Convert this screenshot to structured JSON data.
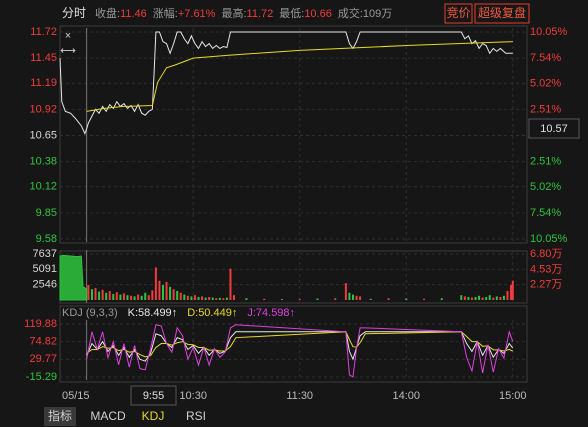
{
  "up_color": "#f03c3c",
  "down_color": "#2ec43c",
  "header": {
    "title": "分时",
    "stats": [
      {
        "label": "收盘:",
        "value": "11.46",
        "color": "#f03c3c"
      },
      {
        "label": "涨幅:",
        "value": "+7.61%",
        "color": "#f03c3c"
      },
      {
        "label": "最高:",
        "value": "11.72",
        "color": "#f03c3c"
      },
      {
        "label": "最低:",
        "value": "10.66",
        "color": "#f03c3c"
      },
      {
        "label": "成交:",
        "value": "109万",
        "color": "#9a9a9a"
      }
    ],
    "buttons": [
      "竞价",
      "超级复盘"
    ]
  },
  "date_label": "05/15",
  "crosshair_time": "9:55",
  "crosshair_price": 10.57,
  "tabs": [
    {
      "text": "指标",
      "style": "selected"
    },
    {
      "text": "MACD",
      "style": "normal"
    },
    {
      "text": "KDJ",
      "style": "active"
    },
    {
      "text": "RSI",
      "style": "normal"
    }
  ],
  "chart_data": [
    {
      "type": "line",
      "xlim": [
        -15,
        248
      ],
      "ylim": [
        9.58,
        11.72
      ],
      "yticks": [
        11.72,
        11.45,
        11.19,
        10.92,
        10.65,
        10.38,
        10.12,
        9.85,
        9.58
      ],
      "ytick_colors": [
        "#f03c3c",
        "#f03c3c",
        "#f03c3c",
        "#f03c3c",
        "#d8d8d8",
        "#2ec43c",
        "#2ec43c",
        "#2ec43c",
        "#2ec43c"
      ],
      "y2lim": [
        -10.05,
        10.05
      ],
      "y2ticks": [
        {
          "value": 10.05,
          "label": "10.05%"
        },
        {
          "value": 7.54,
          "label": "7.54%"
        },
        {
          "value": 5.02,
          "label": "5.02%"
        },
        {
          "value": 2.51,
          "label": "2.51%"
        },
        {
          "value": -2.51,
          "label": "2.51%"
        },
        {
          "value": -5.02,
          "label": "5.02%"
        },
        {
          "value": -7.54,
          "label": "7.54%"
        },
        {
          "value": -10.05,
          "label": "10.05%"
        }
      ],
      "xticks": [
        {
          "value": 60,
          "label": "10:30"
        },
        {
          "value": 120,
          "label": "11:30"
        },
        {
          "value": 180,
          "label": "14:00"
        },
        {
          "value": 240,
          "label": "15:00"
        }
      ],
      "grid": true,
      "x": [
        -15,
        -14,
        -12,
        -9,
        -6,
        -3,
        -1,
        0,
        1,
        3,
        5,
        7,
        9,
        11,
        13,
        15,
        17,
        19,
        21,
        23,
        25,
        27,
        29,
        31,
        33,
        35,
        37,
        38,
        39,
        41,
        43,
        45,
        47,
        49,
        51,
        53,
        55,
        57,
        59,
        61,
        63,
        65,
        67,
        69,
        71,
        73,
        75,
        77,
        79,
        81,
        146,
        148,
        150,
        152,
        154,
        211,
        213,
        215,
        217,
        219,
        221,
        223,
        225,
        227,
        229,
        231,
        233,
        236,
        240
      ],
      "series": [
        {
          "color": "#e8e8e8",
          "values": [
            11.45,
            11.0,
            10.9,
            10.88,
            10.82,
            10.75,
            10.67,
            10.72,
            10.78,
            10.85,
            10.92,
            10.88,
            10.95,
            10.9,
            10.97,
            10.93,
            11.0,
            10.95,
            10.98,
            10.93,
            10.96,
            10.9,
            10.97,
            10.88,
            10.86,
            10.9,
            10.92,
            11.3,
            11.72,
            11.72,
            11.62,
            11.6,
            11.5,
            11.6,
            11.72,
            11.72,
            11.65,
            11.6,
            11.68,
            11.6,
            11.55,
            11.62,
            11.57,
            11.6,
            11.55,
            11.58,
            11.55,
            11.57,
            11.56,
            11.72,
            11.72,
            11.6,
            11.55,
            11.62,
            11.72,
            11.72,
            11.65,
            11.68,
            11.6,
            11.63,
            11.55,
            11.6,
            11.58,
            11.5,
            11.55,
            11.52,
            11.55,
            11.5,
            11.5
          ]
        },
        {
          "color": "#e6dc1e",
          "x": [
            0,
            10,
            20,
            37,
            40,
            45,
            50,
            60,
            80,
            120,
            180,
            240
          ],
          "values": [
            10.9,
            10.93,
            10.95,
            10.96,
            11.2,
            11.35,
            11.38,
            11.45,
            11.48,
            11.53,
            11.58,
            11.62
          ]
        }
      ]
    },
    {
      "type": "bar",
      "xlim": [
        -15,
        248
      ],
      "ylim": [
        0,
        7637
      ],
      "yticks": [
        7637,
        5091,
        2546
      ],
      "y2lim": [
        0,
        6.8
      ],
      "y2ticks": [
        {
          "value": 6.8,
          "label": "6.80万"
        },
        {
          "value": 4.53,
          "label": "4.53万"
        },
        {
          "value": 2.27,
          "label": "2.27万"
        }
      ],
      "x": [
        1,
        3,
        5,
        7,
        9,
        11,
        13,
        15,
        17,
        19,
        21,
        23,
        25,
        27,
        29,
        31,
        33,
        35,
        37,
        39,
        41,
        43,
        45,
        47,
        49,
        51,
        53,
        55,
        57,
        59,
        61,
        63,
        65,
        67,
        69,
        71,
        73,
        75,
        77,
        79,
        81,
        83,
        90,
        100,
        110,
        120,
        130,
        140,
        146,
        148,
        150,
        152,
        154,
        160,
        170,
        180,
        190,
        200,
        211,
        213,
        215,
        217,
        219,
        221,
        223,
        225,
        227,
        229,
        231,
        233,
        235,
        237,
        239,
        240
      ],
      "values": [
        2500,
        1800,
        2000,
        1400,
        1700,
        1200,
        1500,
        1000,
        1300,
        900,
        1100,
        800,
        700,
        600,
        900,
        700,
        1200,
        800,
        1600,
        5400,
        3200,
        2500,
        3000,
        2200,
        1800,
        1500,
        1200,
        900,
        700,
        600,
        800,
        500,
        600,
        400,
        500,
        400,
        300,
        350,
        300,
        400,
        5200,
        800,
        300,
        200,
        150,
        200,
        250,
        300,
        2800,
        1200,
        900,
        700,
        600,
        200,
        300,
        250,
        200,
        300,
        800,
        600,
        500,
        400,
        500,
        700,
        400,
        500,
        800,
        400,
        600,
        500,
        700,
        1500,
        2500,
        3200
      ],
      "directions": [
        "u",
        "d",
        "u",
        "d",
        "u",
        "d",
        "u",
        "d",
        "u",
        "d",
        "u",
        "d",
        "u",
        "d",
        "u",
        "d",
        "d",
        "u",
        "u",
        "u",
        "u",
        "d",
        "u",
        "d",
        "u",
        "d",
        "u",
        "d",
        "u",
        "d",
        "u",
        "d",
        "u",
        "d",
        "u",
        "d",
        "u",
        "d",
        "u",
        "d",
        "u",
        "u",
        "d",
        "u",
        "d",
        "u",
        "d",
        "u",
        "u",
        "d",
        "d",
        "u",
        "u",
        "d",
        "u",
        "d",
        "u",
        "d",
        "d",
        "u",
        "d",
        "u",
        "d",
        "d",
        "u",
        "d",
        "d",
        "u",
        "d",
        "u",
        "d",
        "u",
        "u",
        "u"
      ],
      "area": {
        "color": "#2ec43c",
        "x": [
          -15,
          -13,
          -11,
          -9,
          -7,
          -5,
          -3,
          -2,
          -1,
          0
        ],
        "values": [
          7300,
          7400,
          7350,
          7300,
          7250,
          7200,
          7300,
          2200,
          2000,
          1800
        ]
      }
    },
    {
      "type": "line",
      "title": "KDJ (9,3,3)",
      "xlim": [
        -15,
        248
      ],
      "ylim": [
        -15.29,
        119.88
      ],
      "yticks": [
        119.88,
        74.82,
        29.77,
        -15.29
      ],
      "ytick_colors": [
        "#f03c3c",
        "#f03c3c",
        "#f03c3c",
        "#2ec43c"
      ],
      "x": [
        0,
        3,
        6,
        9,
        12,
        15,
        18,
        21,
        24,
        27,
        30,
        33,
        36,
        39,
        42,
        45,
        48,
        51,
        54,
        57,
        60,
        63,
        66,
        69,
        72,
        75,
        78,
        81,
        84,
        146,
        148,
        150,
        152,
        154,
        157,
        211,
        214,
        217,
        220,
        223,
        226,
        229,
        232,
        235,
        238,
        240
      ],
      "series": [
        {
          "name": "K:58.499↑",
          "color": "#e8e8e8",
          "values": [
            40,
            70,
            55,
            75,
            50,
            65,
            40,
            60,
            35,
            55,
            30,
            25,
            45,
            95,
            90,
            70,
            60,
            85,
            80,
            55,
            65,
            45,
            60,
            40,
            55,
            45,
            50,
            85,
            100,
            100,
            50,
            30,
            60,
            90,
            100,
            100,
            70,
            50,
            75,
            40,
            65,
            35,
            55,
            45,
            70,
            58.499
          ]
        },
        {
          "name": "D:50.449↑",
          "color": "#e6dc1e",
          "values": [
            45,
            55,
            55,
            62,
            58,
            60,
            52,
            55,
            48,
            50,
            42,
            36,
            39,
            60,
            70,
            70,
            66,
            72,
            75,
            68,
            67,
            60,
            60,
            53,
            54,
            51,
            51,
            62,
            85,
            100,
            80,
            62,
            61,
            72,
            95,
            100,
            88,
            75,
            75,
            63,
            64,
            54,
            54,
            51,
            55,
            50.449
          ]
        },
        {
          "name": "J:74.598↑",
          "color": "#e040e0",
          "values": [
            30,
            100,
            55,
            100,
            34,
            75,
            16,
            70,
            10,
            65,
            6,
            3,
            57,
            118,
            115,
            70,
            48,
            110,
            90,
            30,
            60,
            15,
            60,
            15,
            57,
            35,
            48,
            110,
            118,
            100,
            -10,
            -15,
            58,
            110,
            110,
            100,
            35,
            0,
            75,
            -5,
            67,
            -3,
            57,
            33,
            100,
            74.598
          ]
        }
      ]
    }
  ]
}
